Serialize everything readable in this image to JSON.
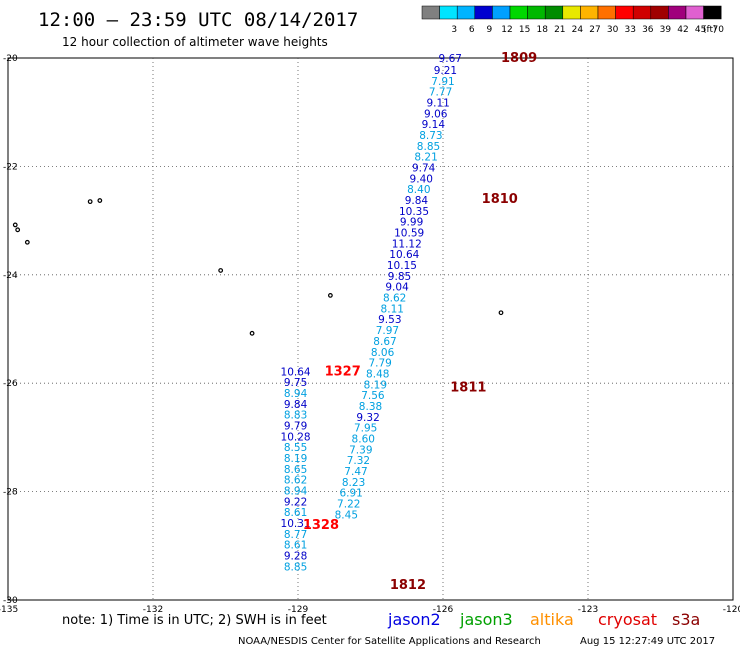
{
  "header": {
    "title": "12:00 – 23:59 UTC 08/14/2017",
    "subtitle": "12 hour collection of altimeter wave heights"
  },
  "legend": {
    "units": "(ft)",
    "swatches": [
      {
        "label": "",
        "color": "#808080"
      },
      {
        "label": "3",
        "color": "#00e4ff"
      },
      {
        "label": "6",
        "color": "#00b4ff"
      },
      {
        "label": "9",
        "color": "#0000d0"
      },
      {
        "label": "12",
        "color": "#00a0ff"
      },
      {
        "label": "15",
        "color": "#00d800"
      },
      {
        "label": "18",
        "color": "#00b800"
      },
      {
        "label": "21",
        "color": "#008c00"
      },
      {
        "label": "24",
        "color": "#e8e800"
      },
      {
        "label": "27",
        "color": "#ffb400"
      },
      {
        "label": "30",
        "color": "#ff7000"
      },
      {
        "label": "33",
        "color": "#ff0000"
      },
      {
        "label": "36",
        "color": "#d00000"
      },
      {
        "label": "39",
        "color": "#a00000"
      },
      {
        "label": "42",
        "color": "#a0007c"
      },
      {
        "label": "45",
        "color": "#e060d0"
      },
      {
        "label": "70",
        "color": "#000000"
      }
    ]
  },
  "map": {
    "lon_ticks": [
      "-135",
      "-132",
      "-129",
      "-126",
      "-123",
      "-120"
    ],
    "lat_ticks": [
      "-20",
      "-22",
      "-24",
      "-26",
      "-28",
      "-30"
    ],
    "lon_range": [
      -135,
      -120
    ],
    "lat_range": [
      -20,
      -30
    ]
  },
  "tracks": [
    {
      "time_labels": [
        {
          "text": "1809",
          "color": "#8b0000",
          "lon": -124.8,
          "lat": -20.0
        },
        {
          "text": "1810",
          "color": "#8b0000",
          "lon": -125.2,
          "lat": -22.6
        },
        {
          "text": "1811",
          "color": "#8b0000",
          "lon": -125.85,
          "lat": -26.08
        },
        {
          "text": "1812",
          "color": "#8b0000",
          "lon": -127.1,
          "lat": -29.72
        }
      ],
      "points": [
        {
          "v": "9.67",
          "color": "#0000c8",
          "lon": -125.85,
          "lat": -20.0
        },
        {
          "v": "9.21",
          "color": "#0000c8",
          "lon": -125.95,
          "lat": -20.22
        },
        {
          "v": "7.91",
          "color": "#00a0e0",
          "lon": -126.0,
          "lat": -20.42
        },
        {
          "v": "7.77",
          "color": "#00a0e0",
          "lon": -126.05,
          "lat": -20.62
        },
        {
          "v": "9.11",
          "color": "#0000c8",
          "lon": -126.1,
          "lat": -20.82
        },
        {
          "v": "9.06",
          "color": "#0000c8",
          "lon": -126.15,
          "lat": -21.02
        },
        {
          "v": "9.14",
          "color": "#0000c8",
          "lon": -126.2,
          "lat": -21.22
        },
        {
          "v": "8.73",
          "color": "#00a0e0",
          "lon": -126.25,
          "lat": -21.42
        },
        {
          "v": "8.85",
          "color": "#00a0e0",
          "lon": -126.3,
          "lat": -21.62
        },
        {
          "v": "8.21",
          "color": "#00a0e0",
          "lon": -126.35,
          "lat": -21.82
        },
        {
          "v": "9.74",
          "color": "#0000c8",
          "lon": -126.4,
          "lat": -22.02
        },
        {
          "v": "9.40",
          "color": "#0000c8",
          "lon": -126.45,
          "lat": -22.22
        },
        {
          "v": "8.40",
          "color": "#00a0e0",
          "lon": -126.5,
          "lat": -22.42
        },
        {
          "v": "9.84",
          "color": "#0000c8",
          "lon": -126.55,
          "lat": -22.62
        },
        {
          "v": "10.35",
          "color": "#0000c8",
          "lon": -126.6,
          "lat": -22.82
        },
        {
          "v": "9.99",
          "color": "#0000c8",
          "lon": -126.65,
          "lat": -23.02
        },
        {
          "v": "10.59",
          "color": "#0000c8",
          "lon": -126.7,
          "lat": -23.22
        },
        {
          "v": "11.12",
          "color": "#0000c8",
          "lon": -126.75,
          "lat": -23.42
        },
        {
          "v": "10.64",
          "color": "#0000c8",
          "lon": -126.8,
          "lat": -23.62
        },
        {
          "v": "10.15",
          "color": "#0000c8",
          "lon": -126.85,
          "lat": -23.82
        },
        {
          "v": "9.85",
          "color": "#0000c8",
          "lon": -126.9,
          "lat": -24.02
        },
        {
          "v": "9.04",
          "color": "#0000c8",
          "lon": -126.95,
          "lat": -24.22
        },
        {
          "v": "8.62",
          "color": "#00a0e0",
          "lon": -127.0,
          "lat": -24.42
        },
        {
          "v": "8.11",
          "color": "#00a0e0",
          "lon": -127.05,
          "lat": -24.62
        },
        {
          "v": "9.53",
          "color": "#0000c8",
          "lon": -127.1,
          "lat": -24.82
        },
        {
          "v": "7.97",
          "color": "#00a0e0",
          "lon": -127.15,
          "lat": -25.02
        },
        {
          "v": "8.67",
          "color": "#00a0e0",
          "lon": -127.2,
          "lat": -25.22
        },
        {
          "v": "8.06",
          "color": "#00a0e0",
          "lon": -127.25,
          "lat": -25.42
        },
        {
          "v": "7.79",
          "color": "#00a0e0",
          "lon": -127.3,
          "lat": -25.62
        },
        {
          "v": "8.48",
          "color": "#00a0e0",
          "lon": -127.35,
          "lat": -25.82
        },
        {
          "v": "8.19",
          "color": "#00a0e0",
          "lon": -127.4,
          "lat": -26.02
        },
        {
          "v": "7.56",
          "color": "#00a0e0",
          "lon": -127.45,
          "lat": -26.22
        },
        {
          "v": "8.38",
          "color": "#00a0e0",
          "lon": -127.5,
          "lat": -26.42
        },
        {
          "v": "9.32",
          "color": "#0000c8",
          "lon": -127.55,
          "lat": -26.62
        },
        {
          "v": "7.95",
          "color": "#00a0e0",
          "lon": -127.6,
          "lat": -26.82
        },
        {
          "v": "8.60",
          "color": "#00a0e0",
          "lon": -127.65,
          "lat": -27.02
        },
        {
          "v": "7.39",
          "color": "#00a0e0",
          "lon": -127.7,
          "lat": -27.22
        },
        {
          "v": "7.32",
          "color": "#00a0e0",
          "lon": -127.75,
          "lat": -27.42
        },
        {
          "v": "7.47",
          "color": "#00a0e0",
          "lon": -127.8,
          "lat": -27.62
        },
        {
          "v": "8.23",
          "color": "#00a0e0",
          "lon": -127.85,
          "lat": -27.82
        },
        {
          "v": "6.91",
          "color": "#00a0e0",
          "lon": -127.9,
          "lat": -28.02
        },
        {
          "v": "7.22",
          "color": "#00a0e0",
          "lon": -127.95,
          "lat": -28.22
        },
        {
          "v": "8.45",
          "color": "#00a0e0",
          "lon": -128.0,
          "lat": -28.42
        }
      ]
    },
    {
      "time_labels": [
        {
          "text": "1327",
          "color": "#ff0000",
          "lon": -128.45,
          "lat": -25.78
        },
        {
          "text": "1328",
          "color": "#ff0000",
          "lon": -128.9,
          "lat": -28.62
        }
      ],
      "points": [
        {
          "v": "10.64",
          "color": "#0000c8",
          "lon": -129.05,
          "lat": -25.78
        },
        {
          "v": "9.75",
          "color": "#0000c8",
          "lon": -129.05,
          "lat": -25.98
        },
        {
          "v": "8.94",
          "color": "#00a0e0",
          "lon": -129.05,
          "lat": -26.18
        },
        {
          "v": "9.84",
          "color": "#0000c8",
          "lon": -129.05,
          "lat": -26.38
        },
        {
          "v": "8.83",
          "color": "#00a0e0",
          "lon": -129.05,
          "lat": -26.58
        },
        {
          "v": "9.79",
          "color": "#0000c8",
          "lon": -129.05,
          "lat": -26.78
        },
        {
          "v": "10.28",
          "color": "#0000c8",
          "lon": -129.05,
          "lat": -26.98
        },
        {
          "v": "8.55",
          "color": "#00a0e0",
          "lon": -129.05,
          "lat": -27.18
        },
        {
          "v": "8.19",
          "color": "#00a0e0",
          "lon": -129.05,
          "lat": -27.38
        },
        {
          "v": "8.65",
          "color": "#00a0e0",
          "lon": -129.05,
          "lat": -27.58
        },
        {
          "v": "8.62",
          "color": "#00a0e0",
          "lon": -129.05,
          "lat": -27.78
        },
        {
          "v": "8.94",
          "color": "#00a0e0",
          "lon": -129.05,
          "lat": -27.98
        },
        {
          "v": "9.22",
          "color": "#0000c8",
          "lon": -129.05,
          "lat": -28.18
        },
        {
          "v": "8.61",
          "color": "#00a0e0",
          "lon": -129.05,
          "lat": -28.38
        },
        {
          "v": "10.31",
          "color": "#0000c8",
          "lon": -129.05,
          "lat": -28.58
        },
        {
          "v": "8.77",
          "color": "#00a0e0",
          "lon": -129.05,
          "lat": -28.78
        },
        {
          "v": "8.61",
          "color": "#00a0e0",
          "lon": -129.05,
          "lat": -28.98
        },
        {
          "v": "9.28",
          "color": "#0000c8",
          "lon": -129.05,
          "lat": -29.18
        },
        {
          "v": "8.85",
          "color": "#00a0e0",
          "lon": -129.05,
          "lat": -29.38
        }
      ]
    }
  ],
  "islands": [
    {
      "lon": -133.3,
      "lat": -22.65
    },
    {
      "lon": -133.1,
      "lat": -22.63
    },
    {
      "lon": -134.85,
      "lat": -23.08
    },
    {
      "lon": -134.8,
      "lat": -23.17
    },
    {
      "lon": -134.6,
      "lat": -23.4
    },
    {
      "lon": -130.6,
      "lat": -23.92
    },
    {
      "lon": -129.95,
      "lat": -25.08
    },
    {
      "lon": -128.33,
      "lat": -24.38
    },
    {
      "lon": -124.8,
      "lat": -24.7
    }
  ],
  "footer": {
    "note": "note: 1) Time is in UTC; 2) SWH is in feet",
    "satellites": [
      {
        "name": "jason2",
        "color": "#0000e0"
      },
      {
        "name": "jason3",
        "color": "#00a000"
      },
      {
        "name": "altika",
        "color": "#ff9000"
      },
      {
        "name": "cryosat",
        "color": "#e00000"
      },
      {
        "name": "s3a",
        "color": "#8b0000"
      }
    ],
    "credit": "NOAA/NESDIS Center for Satellite Applications and Research",
    "generated": "Aug 15 12:27:49 UTC 2017"
  }
}
